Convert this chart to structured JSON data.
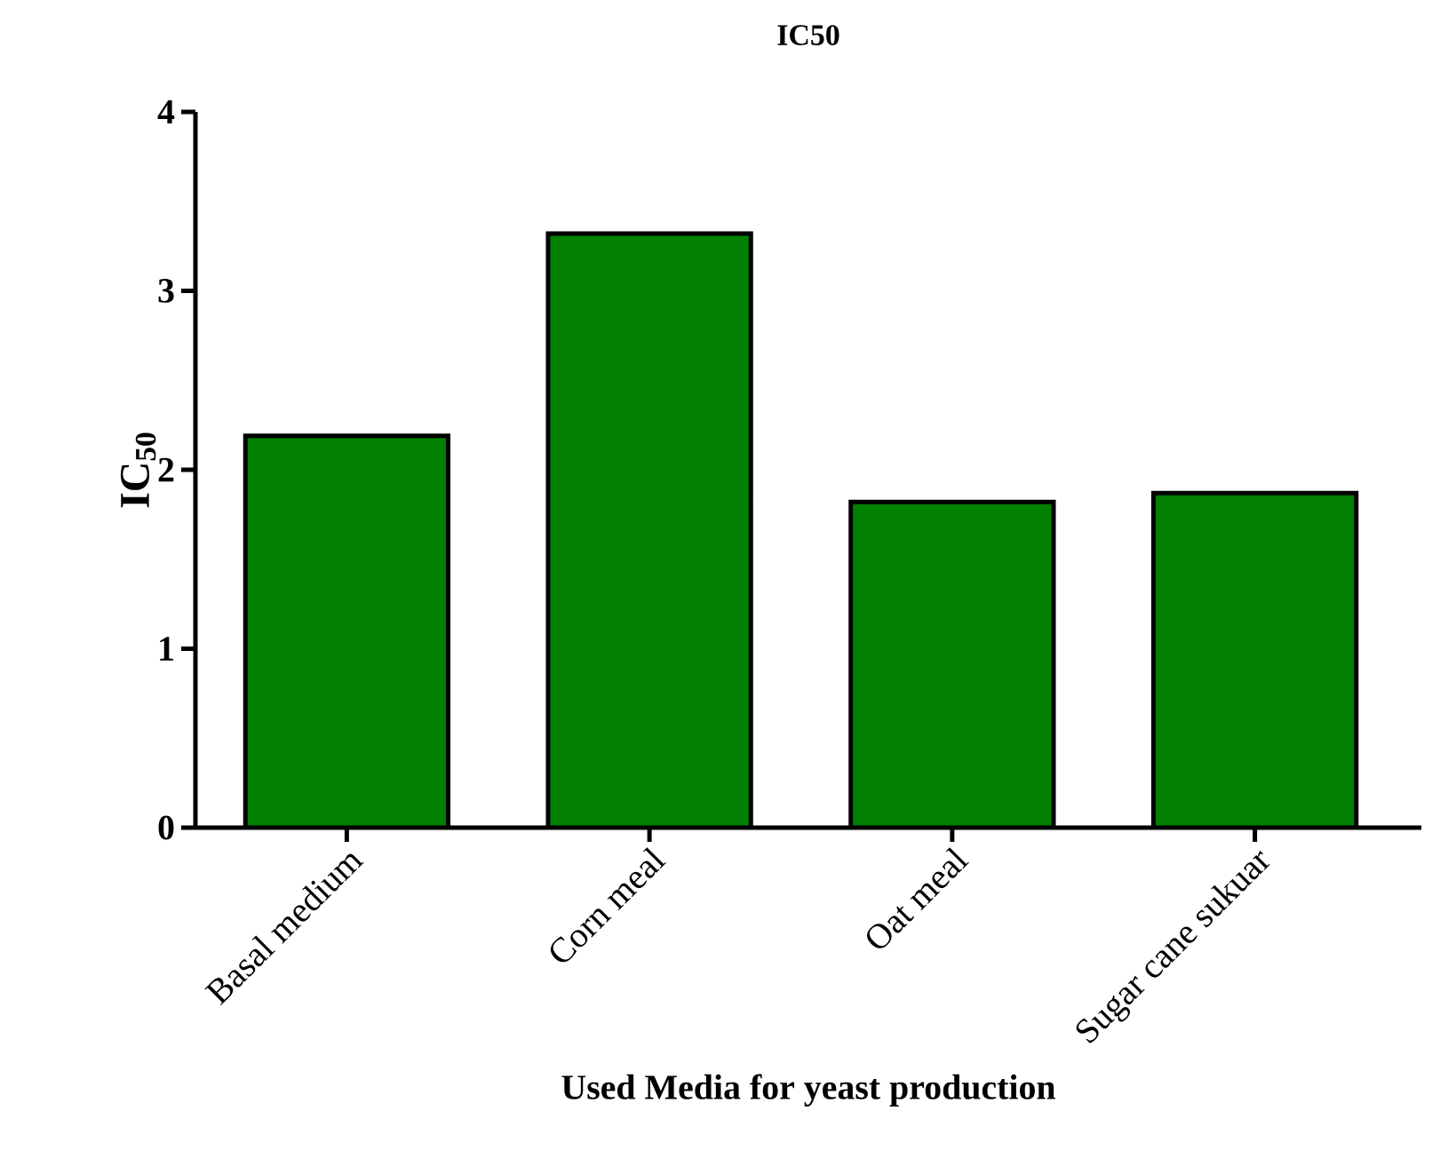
{
  "chart_data": {
    "type": "bar",
    "title": "IC50",
    "xlabel": "Used  Media for yeast production",
    "ylabel": "IC$_{50}$",
    "categories": [
      "Basal medium",
      "Corn meal",
      "Oat meal",
      "Sugar cane sukuar"
    ],
    "values": [
      2.19,
      3.32,
      1.82,
      1.87
    ],
    "color": "#007f00",
    "ylim": [
      0,
      4
    ],
    "yticks": [
      0,
      1,
      2,
      3,
      4
    ],
    "grid": false
  }
}
